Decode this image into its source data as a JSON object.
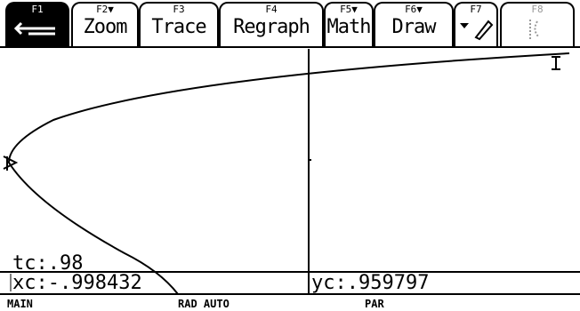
{
  "toolbar": {
    "tabs": [
      {
        "key": "F1"
      },
      {
        "key": "F2▼",
        "label": "Zoom"
      },
      {
        "key": "F3",
        "label": "Trace"
      },
      {
        "key": "F4",
        "label": "Regraph"
      },
      {
        "key": "F5▼",
        "label": "Math"
      },
      {
        "key": "F6▼",
        "label": "Draw"
      },
      {
        "key": "F7"
      },
      {
        "key": "F8"
      }
    ]
  },
  "graph": {
    "trace_param": "tc:.98",
    "x_coord": "xc:-.998432",
    "y_coord": "yc:.959797"
  },
  "status_bar": {
    "folder": "MAIN",
    "mode": "RAD AUTO",
    "graph_mode": "PAR"
  }
}
